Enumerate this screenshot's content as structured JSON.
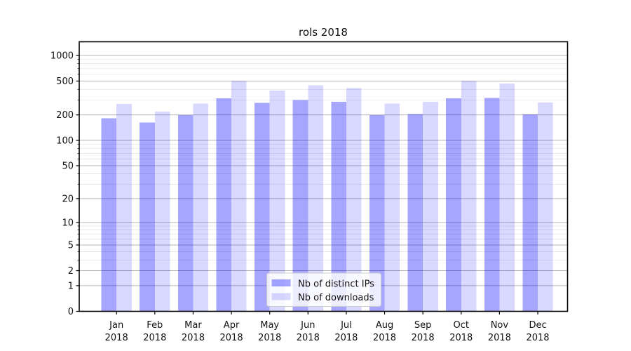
{
  "chart_data": {
    "type": "bar",
    "title": "rols 2018",
    "categories": [
      "Jan",
      "Feb",
      "Mar",
      "Apr",
      "May",
      "Jun",
      "Jul",
      "Aug",
      "Sep",
      "Oct",
      "Nov",
      "Dec"
    ],
    "year_label": "2018",
    "series": [
      {
        "name": "Nb of distinct IPs",
        "color": "#0000ff",
        "alpha": 0.35,
        "values": [
          183,
          163,
          198,
          314,
          276,
          299,
          286,
          198,
          204,
          314,
          318,
          203
        ]
      },
      {
        "name": "Nb of downloads",
        "color": "#0000ff",
        "alpha": 0.15,
        "values": [
          270,
          219,
          272,
          505,
          385,
          445,
          412,
          272,
          286,
          505,
          466,
          281
        ]
      }
    ],
    "yscale": "log1p",
    "yticks": [
      0,
      1,
      2,
      5,
      10,
      20,
      50,
      100,
      200,
      500,
      1000
    ],
    "minor_yticks": [
      3,
      4,
      6,
      7,
      8,
      9,
      30,
      40,
      60,
      70,
      80,
      90,
      300,
      400,
      600,
      700,
      800,
      900
    ],
    "ylim": [
      0,
      1450
    ],
    "grid": true,
    "legend_position": "lower center",
    "bar_rendered_colors": {
      "distinct_ips": "#a6a6f8",
      "downloads": "#d9d9f8"
    }
  }
}
